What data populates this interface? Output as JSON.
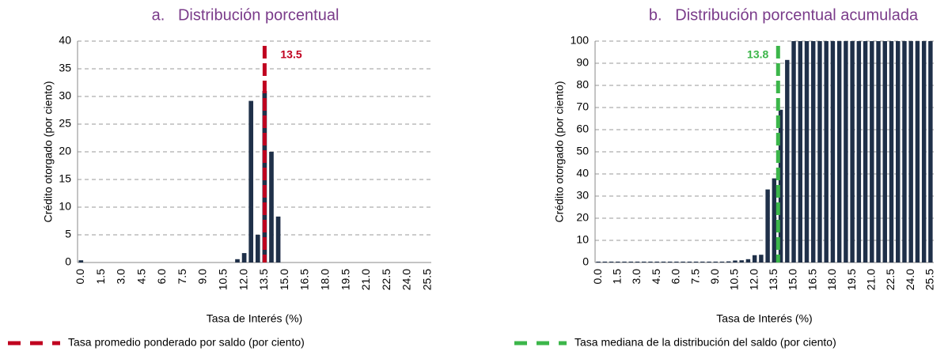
{
  "chart_data": [
    {
      "type": "bar",
      "title": "a.   Distribución porcentual",
      "xlabel": "Tasa de Interés (%)",
      "ylabel": "Crédito otorgado (por ciento)",
      "categories": [
        "0.0",
        null,
        null,
        "1.5",
        null,
        null,
        "3.0",
        null,
        null,
        "4.5",
        null,
        null,
        "6.0",
        null,
        null,
        "7.5",
        null,
        null,
        "9.0",
        null,
        null,
        "10.5",
        null,
        null,
        "12.0",
        null,
        null,
        "13.5",
        null,
        null,
        "15.0",
        null,
        null,
        "16.5",
        null,
        null,
        "18.0",
        null,
        null,
        "19.5",
        null,
        null,
        "21.0",
        null,
        null,
        "22.5",
        null,
        null,
        "24.0",
        null,
        null,
        "25.5"
      ],
      "values": [
        0.4,
        0,
        0,
        0,
        0,
        0,
        0,
        0,
        0,
        0,
        0,
        0,
        0,
        0,
        0,
        0,
        0,
        0,
        0,
        0,
        0,
        0,
        0,
        0.6,
        1.7,
        29.2,
        5,
        31,
        20,
        8.3,
        0,
        0,
        0,
        0,
        0,
        0,
        0,
        0,
        0,
        0,
        0,
        0,
        0,
        0,
        0,
        0,
        0,
        0,
        0,
        0,
        0,
        0
      ],
      "color": "#1f3049",
      "ylim": [
        0,
        40
      ],
      "yticks": [
        0,
        5,
        10,
        15,
        20,
        25,
        30,
        35,
        40
      ],
      "grid": true,
      "reference_line": {
        "value": 13.5,
        "label": "13.5",
        "legend": "Tasa promedio ponderado por saldo (por ciento)",
        "color": "#c0001f"
      }
    },
    {
      "type": "bar",
      "title": "b.   Distribución porcentual acumulada",
      "xlabel": "Tasa de Interés (%)",
      "ylabel": "Crédito otorgado (por ciento)",
      "categories": [
        "0.0",
        null,
        null,
        "1.5",
        null,
        null,
        "3.0",
        null,
        null,
        "4.5",
        null,
        null,
        "6.0",
        null,
        null,
        "7.5",
        null,
        null,
        "9.0",
        null,
        null,
        "10.5",
        null,
        null,
        "12.0",
        null,
        null,
        "13.5",
        null,
        null,
        "15.0",
        null,
        null,
        "16.5",
        null,
        null,
        "18.0",
        null,
        null,
        "19.5",
        null,
        null,
        "21.0",
        null,
        null,
        "22.5",
        null,
        null,
        "24.0",
        null,
        null,
        "25.5"
      ],
      "values": [
        0.4,
        0.4,
        0.4,
        0.4,
        0.4,
        0.4,
        0.4,
        0.4,
        0.4,
        0.4,
        0.4,
        0.4,
        0.4,
        0.4,
        0.4,
        0.4,
        0.4,
        0.4,
        0.4,
        0.4,
        0.5,
        0.9,
        1.0,
        1.5,
        3.3,
        3.5,
        33,
        38,
        69,
        91.5,
        100,
        100,
        100,
        100,
        100,
        100,
        100,
        100,
        100,
        100,
        100,
        100,
        100,
        100,
        100,
        100,
        100,
        100,
        100,
        100,
        100,
        100
      ],
      "color": "#1f3049",
      "ylim": [
        0,
        100
      ],
      "yticks": [
        0,
        10,
        20,
        30,
        40,
        50,
        60,
        70,
        80,
        90,
        100
      ],
      "grid": true,
      "reference_line": {
        "value": 13.8,
        "label": "13.8",
        "legend": "Tasa mediana de la distribución del saldo (por ciento)",
        "color": "#3cb64a"
      }
    }
  ]
}
